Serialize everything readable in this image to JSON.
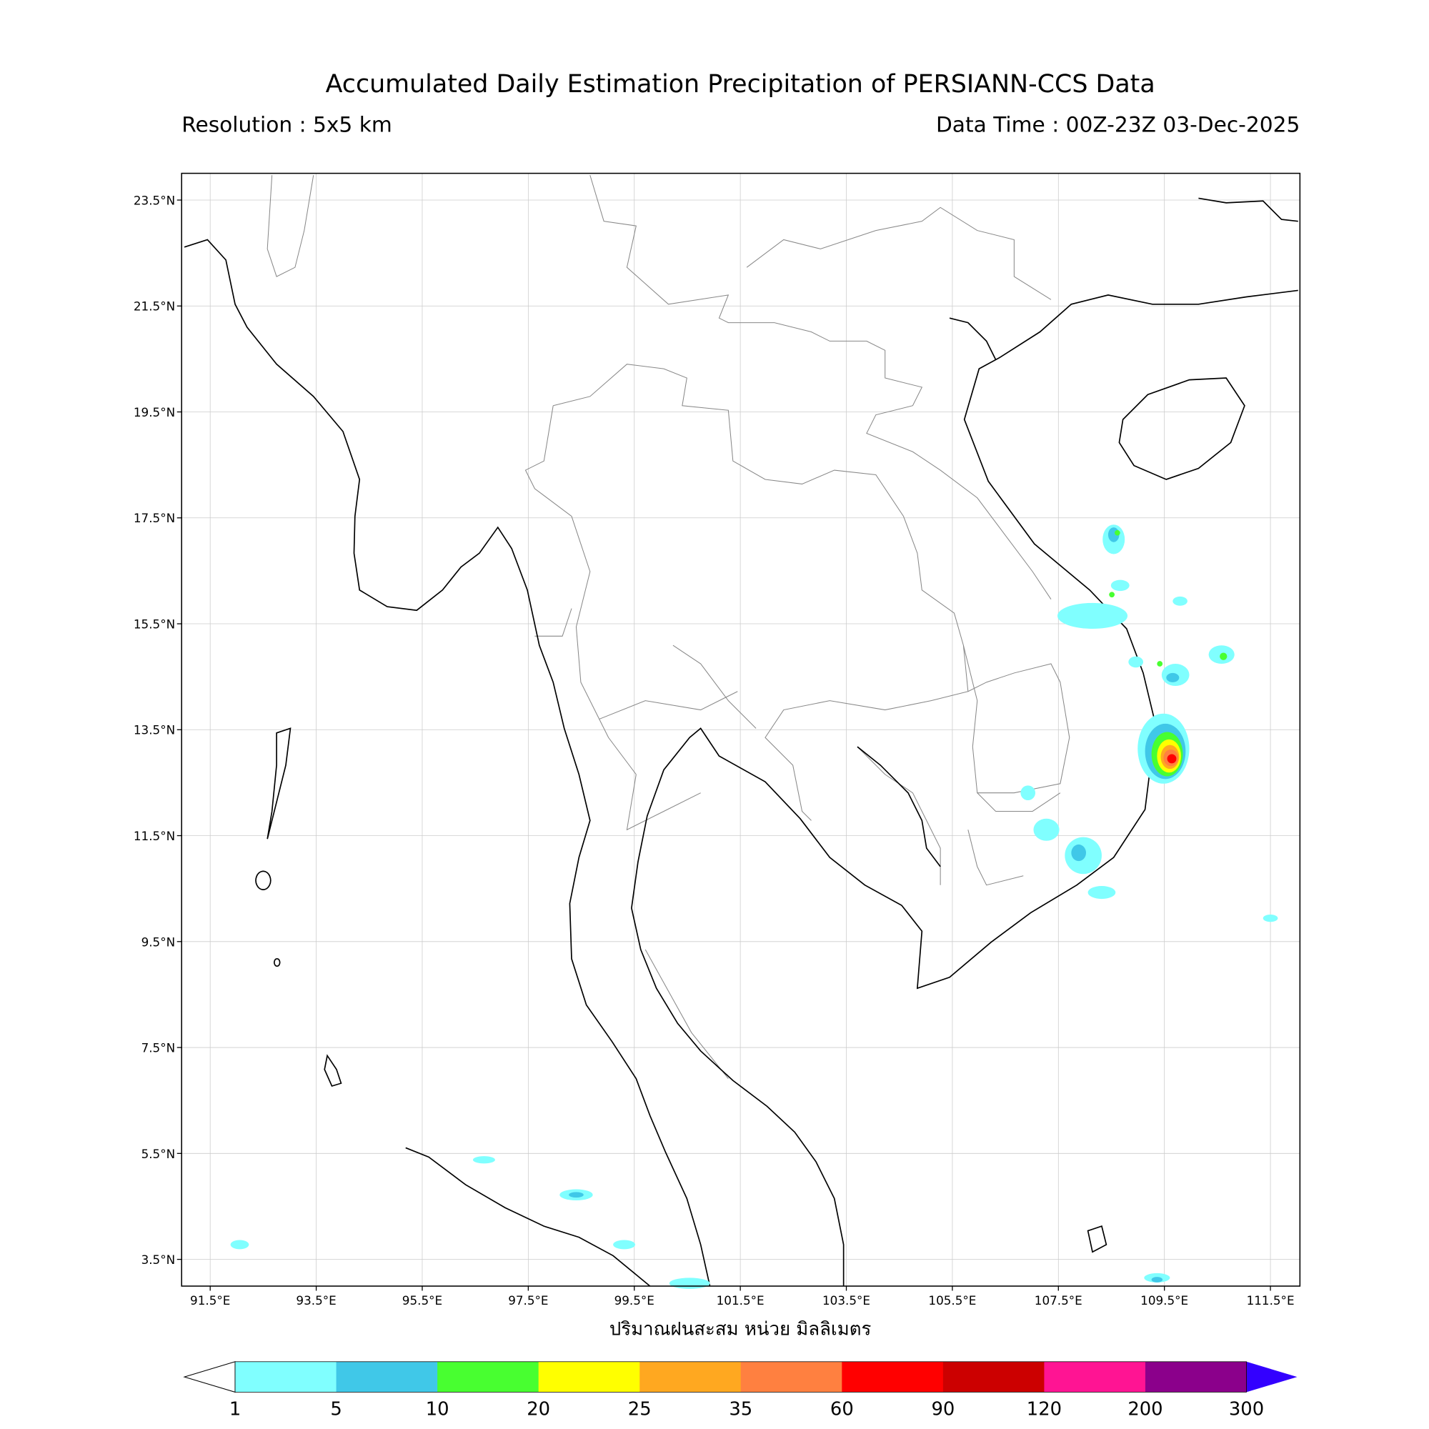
{
  "header": {
    "title": "Accumulated Daily Estimation Precipitation of PERSIANN-CCS Data",
    "resolution": "Resolution : 5x5 km",
    "data_time": "Data Time : 00Z-23Z 03-Dec-2025"
  },
  "map": {
    "lat_ticks": [
      "23.5°N",
      "21.5°N",
      "19.5°N",
      "17.5°N",
      "15.5°N",
      "13.5°N",
      "11.5°N",
      "9.5°N",
      "7.5°N",
      "5.5°N",
      "3.5°N"
    ],
    "lon_ticks": [
      "91.5°E",
      "93.5°E",
      "95.5°E",
      "97.5°E",
      "99.5°E",
      "101.5°E",
      "103.5°E",
      "105.5°E",
      "107.5°E",
      "109.5°E",
      "111.5°E"
    ],
    "x_label": "ปริมาณฝนสะสม หน่วย มิลลิเมตร"
  },
  "colorbar": {
    "levels": [
      1,
      5,
      10,
      20,
      25,
      35,
      60,
      90,
      120,
      200,
      300
    ],
    "colors": [
      "#80ffff",
      "#40c8e8",
      "#48ff30",
      "#ffff00",
      "#ffa820",
      "#ff8040",
      "#ff0000",
      "#cc0000",
      "#ff1493",
      "#8b008b"
    ],
    "under_color": "#ffffff",
    "over_color": "#3300ff"
  }
}
